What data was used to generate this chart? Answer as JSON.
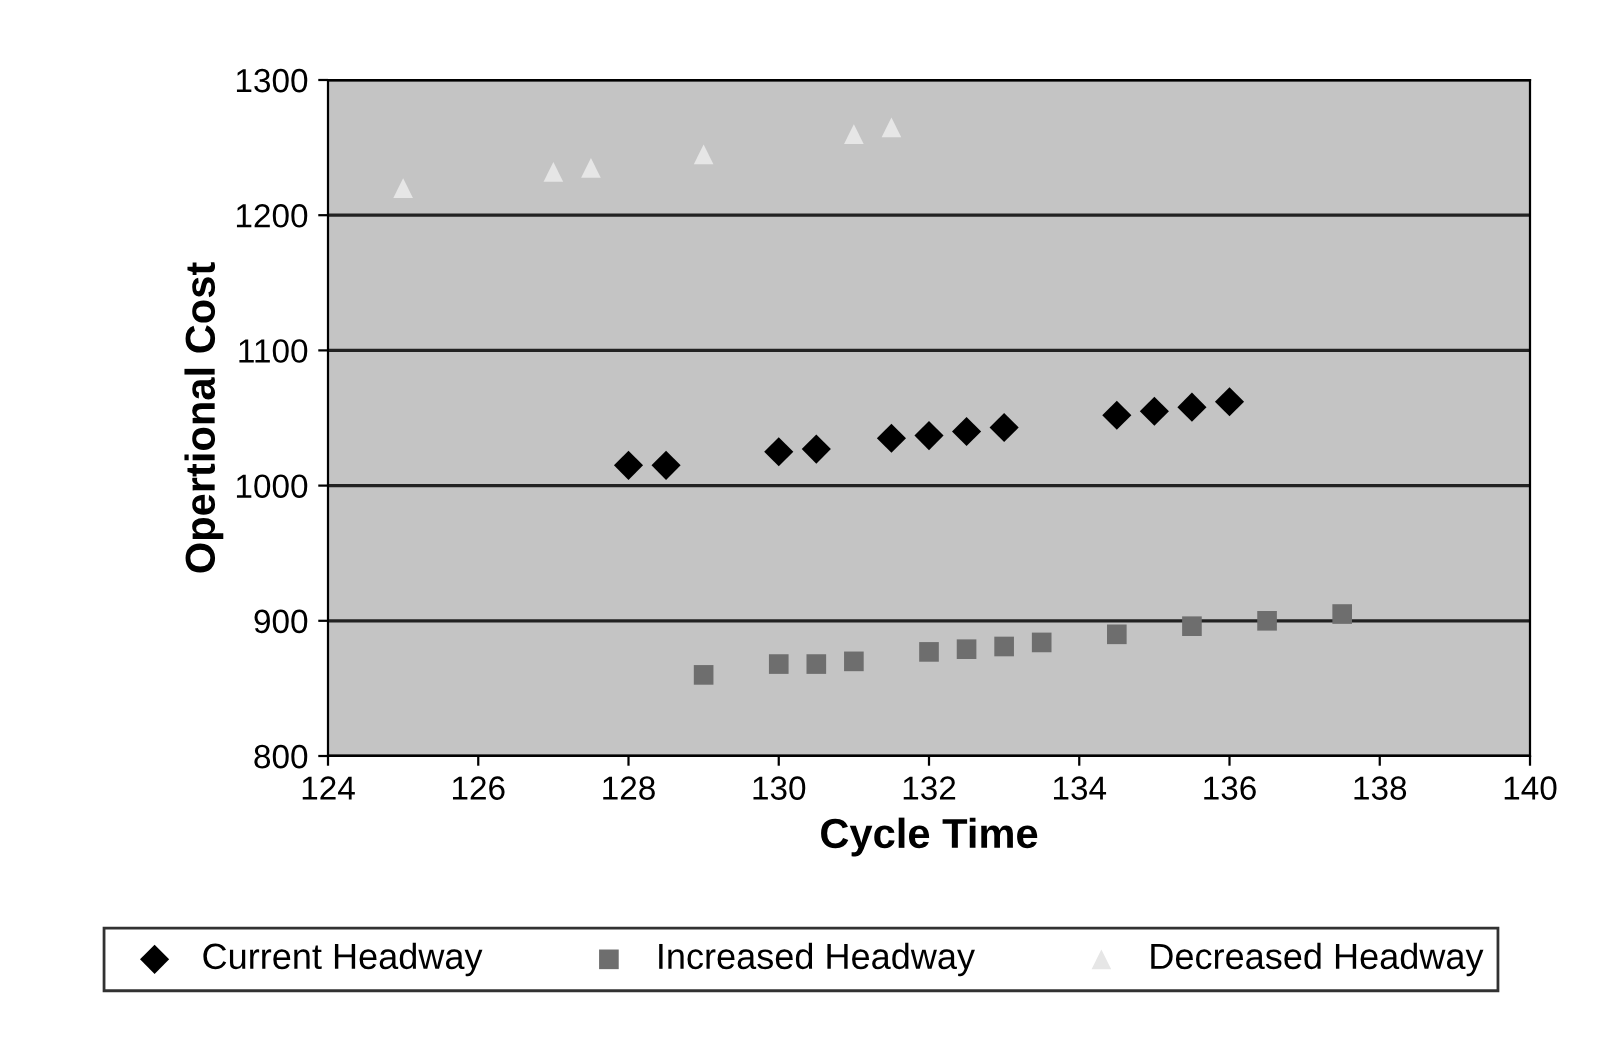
{
  "chart_data": {
    "type": "scatter",
    "xlabel": "Cycle Time",
    "ylabel": "Opertional Cost",
    "xlim": [
      124,
      140
    ],
    "xticks": [
      124,
      126,
      128,
      130,
      132,
      134,
      136,
      138,
      140
    ],
    "ylim": [
      800,
      1300
    ],
    "yticks": [
      800,
      900,
      1000,
      1100,
      1200,
      1300
    ],
    "grid": "y",
    "legend": "bottom",
    "series": [
      {
        "name": "Current Headway",
        "color": "#000000",
        "marker": "diamond",
        "x": [
          128,
          128.5,
          130,
          130.5,
          131.5,
          132,
          132.5,
          133,
          134.5,
          135,
          135.5,
          136
        ],
        "values": [
          1015,
          1015,
          1025,
          1027,
          1035,
          1037,
          1040,
          1043,
          1052,
          1055,
          1058,
          1062
        ]
      },
      {
        "name": "Increased Headway",
        "color": "#6e6e6e",
        "marker": "square",
        "x": [
          129,
          130,
          130.5,
          131,
          132,
          132.5,
          133,
          133.5,
          134.5,
          135.5,
          136.5,
          137.5
        ],
        "values": [
          860,
          868,
          868,
          870,
          877,
          879,
          881,
          884,
          890,
          896,
          900,
          905
        ]
      },
      {
        "name": "Decreased Headway",
        "color": "#e6e6e6",
        "marker": "triangle",
        "x": [
          125,
          127,
          127.5,
          129,
          131,
          131.5
        ],
        "values": [
          1220,
          1232,
          1235,
          1245,
          1260,
          1265
        ]
      }
    ]
  }
}
